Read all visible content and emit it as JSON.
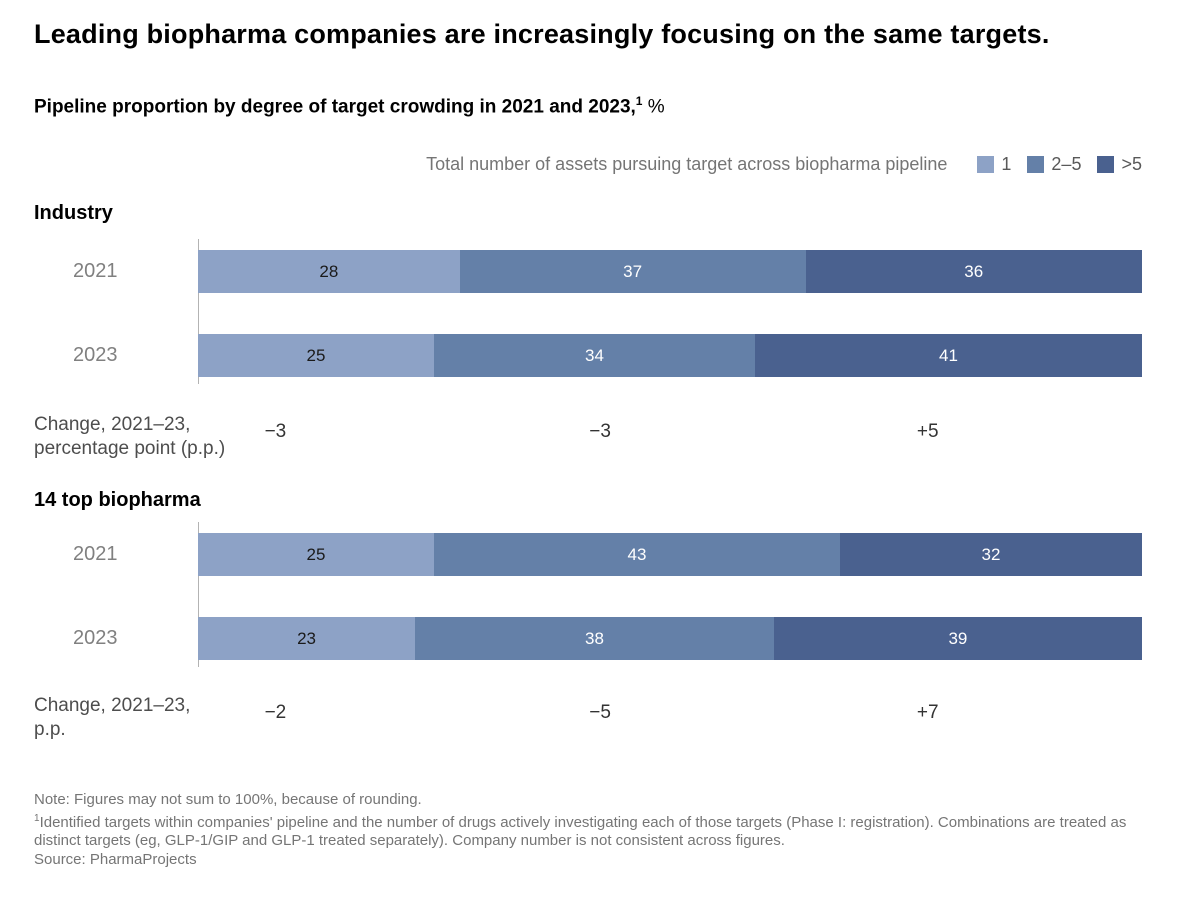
{
  "title": "Leading biopharma companies are increasingly focusing on the same targets.",
  "subtitle": {
    "text": "Pipeline proportion by degree of target crowding in 2021 and 2023,",
    "footnote_marker": "1",
    "unit": " %"
  },
  "legend": {
    "title": "Total number of assets pursuing target across biopharma pipeline",
    "items": [
      {
        "label": "1",
        "color": "#8DA2C6"
      },
      {
        "label": "2–5",
        "color": "#6480A8"
      },
      {
        "label": ">5",
        "color": "#4A618F"
      }
    ]
  },
  "chart_data": {
    "type": "bar",
    "orientation": "horizontal",
    "stacked": true,
    "unit": "%",
    "title": "Pipeline proportion by degree of target crowding in 2021 and 2023, %",
    "legend_title": "Total number of assets pursuing target across biopharma pipeline",
    "series_names": [
      "1",
      "2–5",
      ">5"
    ],
    "series_colors": [
      "#8DA2C6",
      "#6480A8",
      "#4A618F"
    ],
    "xlim": [
      0,
      100
    ],
    "grid": false,
    "groups": [
      {
        "name": "Industry",
        "categories": [
          "2021",
          "2023"
        ],
        "series": [
          {
            "name": "1",
            "values": [
              28,
              25
            ]
          },
          {
            "name": "2–5",
            "values": [
              37,
              34
            ]
          },
          {
            "name": ">5",
            "values": [
              36,
              41
            ]
          }
        ],
        "change_pp": [
          -3,
          -3,
          5
        ]
      },
      {
        "name": "14 top biopharma",
        "categories": [
          "2021",
          "2023"
        ],
        "series": [
          {
            "name": "1",
            "values": [
              25,
              23
            ]
          },
          {
            "name": "2–5",
            "values": [
              43,
              38
            ]
          },
          {
            "name": ">5",
            "values": [
              32,
              39
            ]
          }
        ],
        "change_pp": [
          -2,
          -5,
          7
        ]
      }
    ]
  },
  "groups": [
    {
      "heading": "Industry",
      "rows": [
        {
          "year": "2021",
          "values": [
            28,
            37,
            36
          ]
        },
        {
          "year": "2023",
          "values": [
            25,
            34,
            41
          ]
        }
      ],
      "change": {
        "label_line1": "Change, 2021–23,",
        "label_line2": "percentage point (p.p.)",
        "values": [
          "−3",
          "−3",
          "+5"
        ]
      }
    },
    {
      "heading": "14 top biopharma",
      "rows": [
        {
          "year": "2021",
          "values": [
            25,
            43,
            32
          ]
        },
        {
          "year": "2023",
          "values": [
            23,
            38,
            39
          ]
        }
      ],
      "change": {
        "label_line1": "Change, 2021–23,",
        "label_line2": "p.p.",
        "values": [
          "−2",
          "−5",
          "+7"
        ]
      }
    }
  ],
  "notes": {
    "note": "Note: Figures may not sum to 100%, because of rounding.",
    "footnote_marker": "1",
    "footnote": "Identified targets within companies' pipeline and the number of drugs actively investigating each of those targets (Phase I: registration). Combinations are treated as distinct targets (eg, GLP-1/GIP and GLP-1 treated separately). Company number is not consistent across figures.",
    "source": "Source: PharmaProjects"
  }
}
